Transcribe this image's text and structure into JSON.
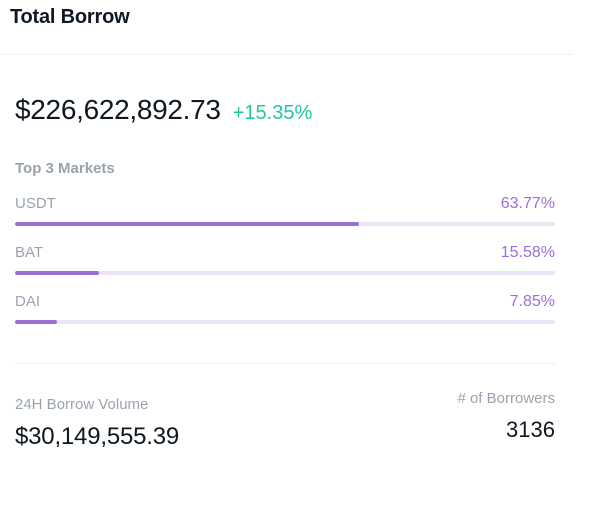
{
  "header": {
    "title": "Total Borrow"
  },
  "total": {
    "value": "$226,622,892.73",
    "change": "+15.35%",
    "change_color": "#1fc7a0"
  },
  "top_markets": {
    "label": "Top 3 Markets",
    "bar_color": "#9b6ed8",
    "track_color": "#ebe4f7",
    "items": [
      {
        "name": "USDT",
        "percent_label": "63.77%",
        "percent": 63.77
      },
      {
        "name": "BAT",
        "percent_label": "15.58%",
        "percent": 15.58
      },
      {
        "name": "DAI",
        "percent_label": "7.85%",
        "percent": 7.85
      }
    ]
  },
  "stats": {
    "volume_label": "24H Borrow Volume",
    "volume_value": "$30,149,555.39",
    "borrowers_label": "# of Borrowers",
    "borrowers_value": "3136"
  }
}
